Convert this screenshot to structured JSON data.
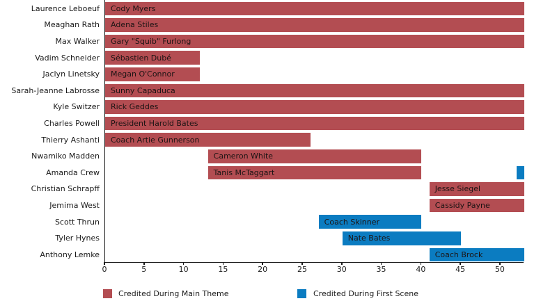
{
  "chart_data": {
    "type": "bar",
    "variant": "horizontal-gantt",
    "title": "",
    "xlabel": "",
    "ylabel": "",
    "x_axis": {
      "min": 0,
      "max": 53,
      "ticks": [
        0,
        5,
        10,
        15,
        20,
        25,
        30,
        35,
        40,
        45,
        50
      ]
    },
    "grid": false,
    "legend": {
      "position": "bottom",
      "items": [
        {
          "key": "main_theme",
          "label": "Credited During Main Theme",
          "color": "#b34d52"
        },
        {
          "key": "first_scene",
          "label": "Credited During First Scene",
          "color": "#0b7cc1"
        }
      ]
    },
    "rows": [
      {
        "actor": "Laurence Leboeuf",
        "segments": [
          {
            "label": "Cody Myers",
            "start": 0,
            "end": 53,
            "key": "main_theme"
          }
        ]
      },
      {
        "actor": "Meaghan Rath",
        "segments": [
          {
            "label": "Adena Stiles",
            "start": 0,
            "end": 53,
            "key": "main_theme"
          }
        ]
      },
      {
        "actor": "Max Walker",
        "segments": [
          {
            "label": "Gary \"Squib\" Furlong",
            "start": 0,
            "end": 53,
            "key": "main_theme"
          }
        ]
      },
      {
        "actor": "Vadim Schneider",
        "segments": [
          {
            "label": "Sébastien Dubé",
            "start": 0,
            "end": 12,
            "key": "main_theme"
          }
        ]
      },
      {
        "actor": "Jaclyn Linetsky",
        "segments": [
          {
            "label": "Megan O'Connor",
            "start": 0,
            "end": 12,
            "key": "main_theme"
          }
        ]
      },
      {
        "actor": "Sarah-Jeanne Labrosse",
        "segments": [
          {
            "label": "Sunny Capaduca",
            "start": 0,
            "end": 53,
            "key": "main_theme"
          }
        ]
      },
      {
        "actor": "Kyle Switzer",
        "segments": [
          {
            "label": "Rick Geddes",
            "start": 0,
            "end": 53,
            "key": "main_theme"
          }
        ]
      },
      {
        "actor": "Charles Powell",
        "segments": [
          {
            "label": "President Harold Bates",
            "start": 0,
            "end": 53,
            "key": "main_theme"
          }
        ]
      },
      {
        "actor": "Thierry Ashanti",
        "segments": [
          {
            "label": "Coach Artie Gunnerson",
            "start": 0,
            "end": 26,
            "key": "main_theme"
          }
        ]
      },
      {
        "actor": "Nwamiko Madden",
        "segments": [
          {
            "label": "Cameron White",
            "start": 13,
            "end": 40,
            "key": "main_theme"
          }
        ]
      },
      {
        "actor": "Amanda Crew",
        "segments": [
          {
            "label": "Tanis McTaggart",
            "start": 13,
            "end": 40,
            "key": "main_theme"
          },
          {
            "label": "",
            "start": 52,
            "end": 53,
            "key": "first_scene"
          }
        ]
      },
      {
        "actor": "Christian Schrapff",
        "segments": [
          {
            "label": "Jesse Siegel",
            "start": 41,
            "end": 53,
            "key": "main_theme"
          }
        ]
      },
      {
        "actor": "Jemima West",
        "segments": [
          {
            "label": "Cassidy Payne",
            "start": 41,
            "end": 53,
            "key": "main_theme"
          }
        ]
      },
      {
        "actor": "Scott Thrun",
        "segments": [
          {
            "label": "Coach Skinner",
            "start": 27,
            "end": 40,
            "key": "first_scene"
          }
        ]
      },
      {
        "actor": "Tyler Hynes",
        "segments": [
          {
            "label": "Nate Bates",
            "start": 30,
            "end": 45,
            "key": "first_scene"
          }
        ]
      },
      {
        "actor": "Anthony Lemke",
        "segments": [
          {
            "label": "Coach Brock",
            "start": 41,
            "end": 53,
            "key": "first_scene"
          }
        ]
      }
    ]
  },
  "colors": {
    "main_theme": "#b34d52",
    "first_scene": "#0b7cc1",
    "text": "#1a1a1a",
    "axis": "#1a1a1a",
    "background": "#ffffff"
  }
}
